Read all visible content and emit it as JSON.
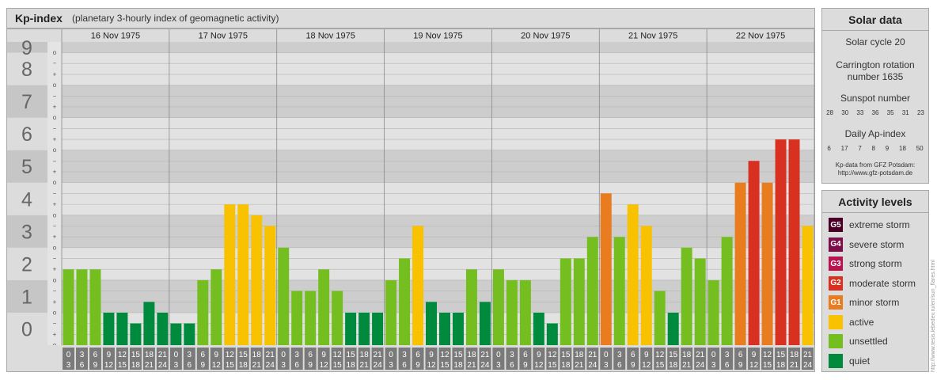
{
  "header": {
    "title": "Kp-index",
    "subtitle": "(planetary 3-hourly index of geomagnetic activity)"
  },
  "chart_data": {
    "type": "bar",
    "days": [
      "16 Nov 1975",
      "17 Nov 1975",
      "18 Nov 1975",
      "19 Nov 1975",
      "20 Nov 1975",
      "21 Nov 1975",
      "22 Nov 1975"
    ],
    "interval_start": [
      "0",
      "3",
      "6",
      "9",
      "12",
      "15",
      "18",
      "21"
    ],
    "interval_end": [
      "3",
      "6",
      "9",
      "12",
      "15",
      "18",
      "21",
      "24"
    ],
    "ylim": [
      0,
      9.33
    ],
    "y_ticks": [
      "0",
      "1",
      "2",
      "3",
      "4",
      "5",
      "6",
      "7",
      "8",
      "9"
    ],
    "minor_labels": [
      "o",
      "+",
      "−",
      "o"
    ],
    "values": [
      2.33,
      2.33,
      2.33,
      1.0,
      1.0,
      0.67,
      1.33,
      1.0,
      0.67,
      0.67,
      2.0,
      2.33,
      4.33,
      4.33,
      4.0,
      3.67,
      3.0,
      1.67,
      1.67,
      2.33,
      1.67,
      1.0,
      1.0,
      1.0,
      2.0,
      2.67,
      3.67,
      1.33,
      1.0,
      1.0,
      2.33,
      1.33,
      2.33,
      2.0,
      2.0,
      1.0,
      0.67,
      2.67,
      2.67,
      3.33,
      4.67,
      3.33,
      4.33,
      3.67,
      1.67,
      1.0,
      3.0,
      2.67,
      2.0,
      3.33,
      5.0,
      5.67,
      5.0,
      6.33,
      6.33,
      3.67
    ],
    "level_colors": {
      "quiet": "#008a3e",
      "unsettled": "#74bf1f",
      "active": "#f8c200",
      "G1": "#e87c1e",
      "G2": "#d93121",
      "G3": "#b8124f",
      "G4": "#7d0e4a",
      "G5": "#4a0026"
    },
    "grid": true
  },
  "solar": {
    "title": "Solar data",
    "cycle": "Solar cycle 20",
    "carrington_line1": "Carrington rotation",
    "carrington_line2": "number 1635",
    "sunspot_title": "Sunspot number",
    "sunspot_values": [
      "28",
      "30",
      "33",
      "36",
      "35",
      "31",
      "23"
    ],
    "ap_title": "Daily Ap-index",
    "ap_values": [
      "6",
      "17",
      "7",
      "8",
      "9",
      "18",
      "50"
    ],
    "source_line1": "Kp-data from GFZ Potsdam:",
    "source_line2": "http://www.gfz-potsdam.de"
  },
  "activity": {
    "title": "Activity levels",
    "items": [
      {
        "code": "G5",
        "label": "extreme storm",
        "color": "#4a0026"
      },
      {
        "code": "G4",
        "label": "severe storm",
        "color": "#7d0e4a"
      },
      {
        "code": "G3",
        "label": "strong storm",
        "color": "#b8124f"
      },
      {
        "code": "G2",
        "label": "moderate storm",
        "color": "#d93121"
      },
      {
        "code": "G1",
        "label": "minor storm",
        "color": "#e87c1e"
      },
      {
        "code": "",
        "label": "active",
        "color": "#f8c200"
      },
      {
        "code": "",
        "label": "unsettled",
        "color": "#74bf1f"
      },
      {
        "code": "",
        "label": "quiet",
        "color": "#008a3e"
      }
    ]
  },
  "credit": "http://www.tesis.lebedev.ru/en/sun_flares.html"
}
